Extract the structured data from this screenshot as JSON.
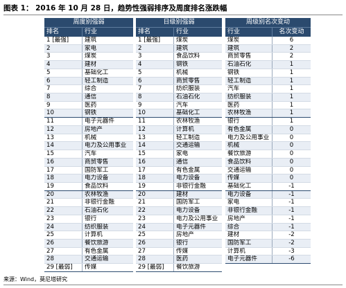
{
  "title": "图表 1： 2016 年 10 月 28 日，趋势性强弱排序及周度排名涨跌幅",
  "source": "来源：Wind，莫尼塔研究",
  "weekly": {
    "caption": "周度别强弱",
    "col_rank": "排名",
    "col_industry": "行业",
    "rows": [
      {
        "rank": "1 [最强]",
        "name": "建筑"
      },
      {
        "rank": "2",
        "name": "家电"
      },
      {
        "rank": "3",
        "name": "煤炭"
      },
      {
        "rank": "4",
        "name": "建材"
      },
      {
        "rank": "5",
        "name": "基础化工"
      },
      {
        "rank": "6",
        "name": "轻工制造"
      },
      {
        "rank": "7",
        "name": "综合"
      },
      {
        "rank": "8",
        "name": "通信"
      },
      {
        "rank": "9",
        "name": "医药"
      },
      {
        "rank": "10",
        "name": "钢铁"
      },
      {
        "rank": "11",
        "name": "电子元器件"
      },
      {
        "rank": "12",
        "name": "房地产"
      },
      {
        "rank": "13",
        "name": "机械"
      },
      {
        "rank": "14",
        "name": "电力及公用事业"
      },
      {
        "rank": "15",
        "name": "汽车"
      },
      {
        "rank": "16",
        "name": "商贸零售"
      },
      {
        "rank": "17",
        "name": "国防军工"
      },
      {
        "rank": "18",
        "name": "电力设备"
      },
      {
        "rank": "19",
        "name": "食品饮料"
      },
      {
        "rank": "20",
        "name": "农林牧渔"
      },
      {
        "rank": "21",
        "name": "非银行金融"
      },
      {
        "rank": "22",
        "name": "石油石化"
      },
      {
        "rank": "23",
        "name": "银行"
      },
      {
        "rank": "24",
        "name": "纺织服装"
      },
      {
        "rank": "25",
        "name": "计算机"
      },
      {
        "rank": "26",
        "name": "餐饮旅游"
      },
      {
        "rank": "27",
        "name": "有色金属"
      },
      {
        "rank": "28",
        "name": "交通运输"
      },
      {
        "rank": "29 [最弱]",
        "name": "传媒"
      }
    ]
  },
  "daily": {
    "caption": "日级别强弱",
    "col_rank": "排名",
    "col_industry": "行业",
    "rows": [
      {
        "rank": "1 [最强]",
        "name": "煤炭"
      },
      {
        "rank": "2",
        "name": "建筑"
      },
      {
        "rank": "3",
        "name": "食品饮料"
      },
      {
        "rank": "4",
        "name": "钢铁"
      },
      {
        "rank": "5",
        "name": "机械"
      },
      {
        "rank": "6",
        "name": "商贸零售"
      },
      {
        "rank": "7",
        "name": "纺织服装"
      },
      {
        "rank": "8",
        "name": "石油石化"
      },
      {
        "rank": "9",
        "name": "汽车"
      },
      {
        "rank": "10",
        "name": "基础化工"
      },
      {
        "rank": "11",
        "name": "农林牧渔"
      },
      {
        "rank": "12",
        "name": "计算机"
      },
      {
        "rank": "13",
        "name": "轻工制造"
      },
      {
        "rank": "14",
        "name": "交通运输"
      },
      {
        "rank": "15",
        "name": "家电"
      },
      {
        "rank": "16",
        "name": "通信"
      },
      {
        "rank": "17",
        "name": "有色金属"
      },
      {
        "rank": "18",
        "name": "电力设备"
      },
      {
        "rank": "19",
        "name": "非银行金融"
      },
      {
        "rank": "20",
        "name": "建材"
      },
      {
        "rank": "21",
        "name": "国防军工"
      },
      {
        "rank": "22",
        "name": "电力设备"
      },
      {
        "rank": "23",
        "name": "电力及公用事业"
      },
      {
        "rank": "24",
        "name": "电子元器件"
      },
      {
        "rank": "25",
        "name": "房地产"
      },
      {
        "rank": "26",
        "name": "银行"
      },
      {
        "rank": "27",
        "name": "传媒"
      },
      {
        "rank": "28",
        "name": "医药"
      },
      {
        "rank": "29 [最弱]",
        "name": "餐饮旅游"
      }
    ]
  },
  "change": {
    "caption": "周级别名次变动",
    "col_industry": "行业",
    "col_change": "名次变动",
    "rows": [
      {
        "name": "煤炭",
        "change": "6"
      },
      {
        "name": "建筑",
        "change": "2"
      },
      {
        "name": "商贸零售",
        "change": "2"
      },
      {
        "name": "石油石化",
        "change": "1"
      },
      {
        "name": "钢铁",
        "change": "1"
      },
      {
        "name": "轻工制造",
        "change": "1"
      },
      {
        "name": "汽车",
        "change": "1"
      },
      {
        "name": "纺织服装",
        "change": "1"
      },
      {
        "name": "医药",
        "change": "1"
      },
      {
        "name": "农林牧渔",
        "change": "1"
      },
      {
        "name": "银行",
        "change": "1"
      },
      {
        "name": "有色金属",
        "change": "0"
      },
      {
        "name": "电力及公用事业",
        "change": "0"
      },
      {
        "name": "机械",
        "change": "0"
      },
      {
        "name": "餐饮旅游",
        "change": "0"
      },
      {
        "name": "食品饮料",
        "change": "0"
      },
      {
        "name": "交通运输",
        "change": "0"
      },
      {
        "name": "传媒",
        "change": "0"
      },
      {
        "name": "基础化工",
        "change": "-1"
      },
      {
        "name": "电力设备",
        "change": "-1"
      },
      {
        "name": "家电",
        "change": "-1"
      },
      {
        "name": "非银行金融",
        "change": "-1"
      },
      {
        "name": "房地产",
        "change": "-1"
      },
      {
        "name": "综合",
        "change": "-1"
      },
      {
        "name": "建材",
        "change": "-2"
      },
      {
        "name": "国防军工",
        "change": "-2"
      },
      {
        "name": "计算机",
        "change": "-3"
      },
      {
        "name": "电子元器件",
        "change": "-6"
      }
    ]
  }
}
